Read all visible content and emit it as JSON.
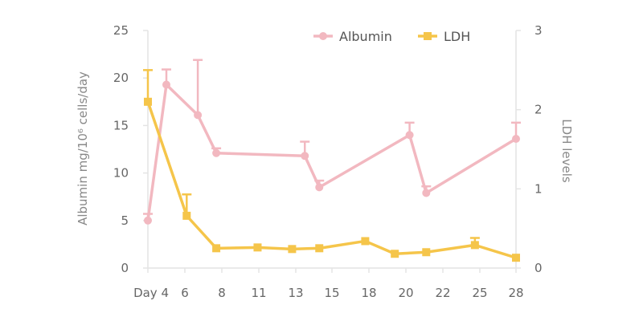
{
  "chart_data": {
    "type": "line",
    "x_tick_labels": [
      "Day 4",
      "6",
      "8",
      "11",
      "13",
      "15",
      "18",
      "20",
      "22",
      "25",
      "28"
    ],
    "y_left": {
      "label": "Albumin mg/10⁶ cells/day",
      "range": [
        0,
        25
      ],
      "ticks": [
        "0",
        "5",
        "10",
        "15",
        "20",
        "25"
      ]
    },
    "y_right": {
      "label": "LDH levels",
      "range": [
        0,
        3
      ],
      "ticks": [
        "0",
        "1",
        "2",
        "3"
      ]
    },
    "legend_position": "top-right",
    "grid": false,
    "series": [
      {
        "name": "Albumin",
        "axis": "left",
        "color": "#f2b8c0",
        "marker": "circle",
        "points": [
          {
            "x": 4,
            "y": 5.0,
            "err": 0.7
          },
          {
            "x": 5,
            "y": 19.3,
            "err": 1.6
          },
          {
            "x": 6.7,
            "y": 16.1,
            "err": 5.8
          },
          {
            "x": 7.7,
            "y": 12.1,
            "err": 0.5
          },
          {
            "x": 13.5,
            "y": 11.8,
            "err": 1.5
          },
          {
            "x": 14.3,
            "y": 8.5,
            "err": 0.7
          },
          {
            "x": 20.2,
            "y": 14.0,
            "err": 1.3
          },
          {
            "x": 21.1,
            "y": 7.9,
            "err": 0.7
          },
          {
            "x": 28,
            "y": 13.6,
            "err": 1.7
          }
        ]
      },
      {
        "name": "LDH",
        "axis": "right",
        "color": "#f5c54a",
        "marker": "square",
        "points": [
          {
            "x": 4,
            "y": 2.1,
            "err": 0.4
          },
          {
            "x": 6.1,
            "y": 0.66,
            "err": 0.27
          },
          {
            "x": 7.7,
            "y": 0.25,
            "err": 0
          },
          {
            "x": 10.9,
            "y": 0.26,
            "err": 0
          },
          {
            "x": 12.8,
            "y": 0.24,
            "err": 0
          },
          {
            "x": 14.3,
            "y": 0.25,
            "err": 0
          },
          {
            "x": 17.7,
            "y": 0.34,
            "err": 0
          },
          {
            "x": 19.4,
            "y": 0.18,
            "err": 0
          },
          {
            "x": 21.1,
            "y": 0.2,
            "err": 0
          },
          {
            "x": 24.6,
            "y": 0.29,
            "err": 0.09
          },
          {
            "x": 28,
            "y": 0.13,
            "err": 0
          }
        ]
      }
    ]
  }
}
